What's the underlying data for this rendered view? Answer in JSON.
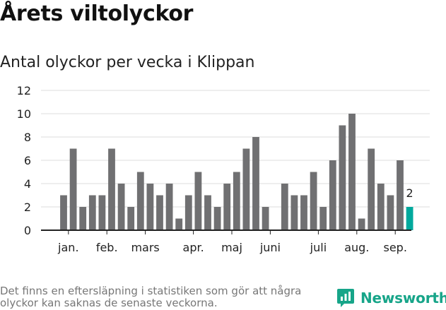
{
  "header": {
    "title": "Årets viltolyckor",
    "subtitle": "Antal olyckor per vecka i Klippan"
  },
  "footer": {
    "note": "Det finns en eftersläpning i statistiken som gör att några olyckor kan saknas de senaste veckorna.",
    "brand": "Newsworthy",
    "brand_icon": "newsworthy-logo-icon"
  },
  "colors": {
    "bar": "#707072",
    "highlight": "#00a99d",
    "grid": "#dddddd",
    "brand": "#17a589"
  },
  "chart_data": {
    "type": "bar",
    "title": "Antal olyckor per vecka i Klippan",
    "xlabel": "",
    "ylabel": "",
    "ylim": [
      0,
      12
    ],
    "yticks": [
      0,
      2,
      4,
      6,
      8,
      10,
      12
    ],
    "grid": true,
    "x_unit": "week",
    "x_start_week": 1,
    "values": [
      3,
      7,
      2,
      3,
      3,
      7,
      4,
      2,
      5,
      4,
      3,
      4,
      1,
      3,
      5,
      3,
      2,
      4,
      5,
      7,
      8,
      2,
      0,
      4,
      3,
      3,
      5,
      2,
      6,
      9,
      10,
      1,
      7,
      4,
      3,
      6,
      2
    ],
    "x_tick_labels": [
      {
        "label": "jan.",
        "week": 1.5
      },
      {
        "label": "feb.",
        "week": 5.5
      },
      {
        "label": "mars",
        "week": 9.5
      },
      {
        "label": "apr.",
        "week": 14.5
      },
      {
        "label": "maj",
        "week": 18.5
      },
      {
        "label": "juni",
        "week": 22.5
      },
      {
        "label": "juli",
        "week": 27.5
      },
      {
        "label": "aug.",
        "week": 31.5
      },
      {
        "label": "sep.",
        "week": 35.5
      }
    ],
    "highlight": {
      "week": 37,
      "value": 2,
      "label": "2"
    }
  }
}
